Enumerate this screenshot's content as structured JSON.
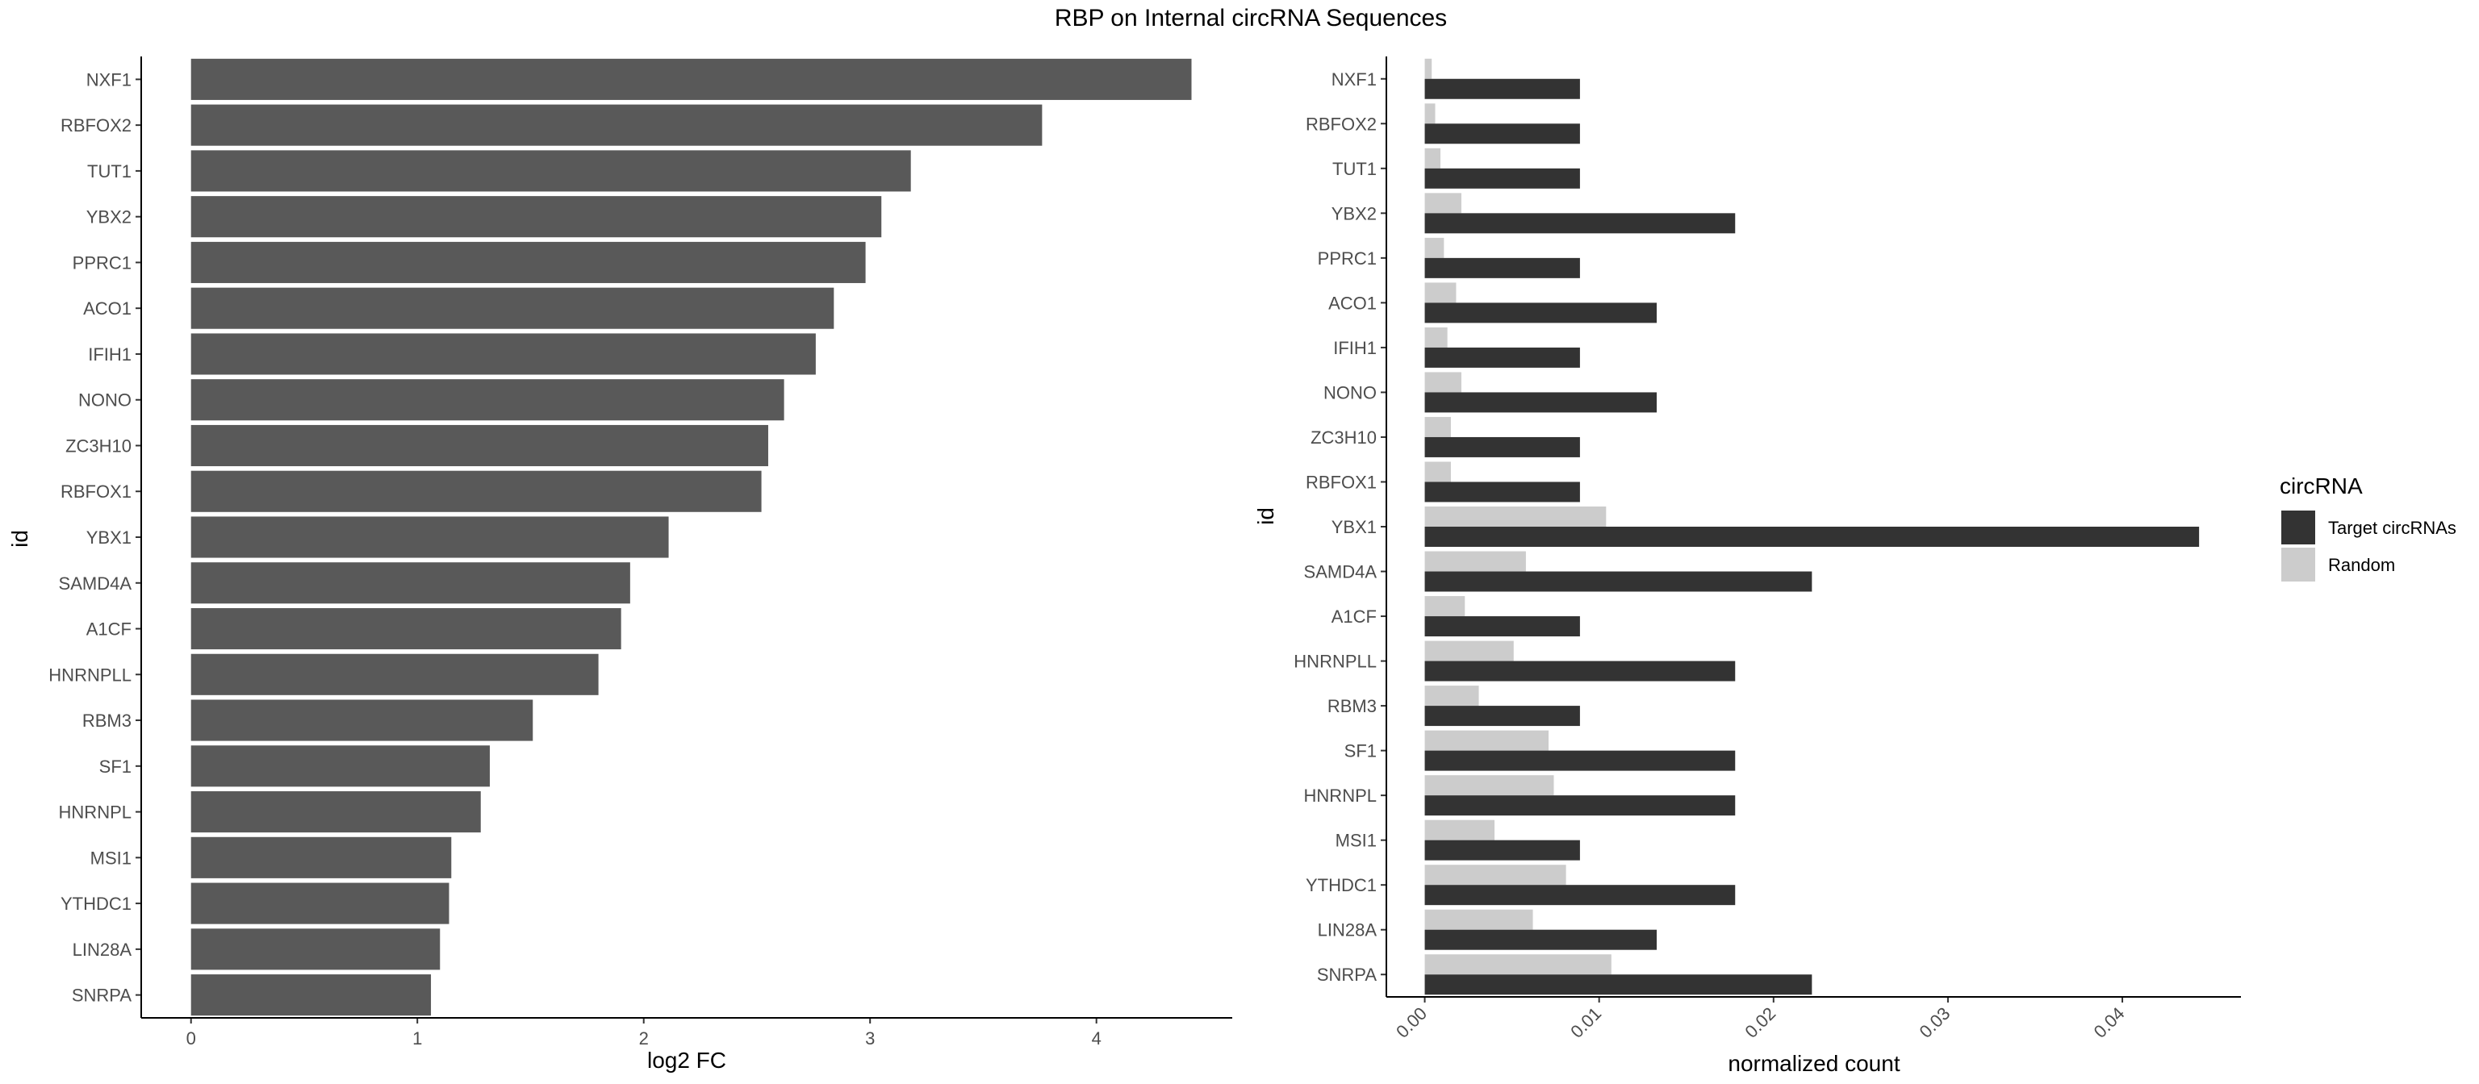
{
  "title": "RBP on Internal circRNA Sequences",
  "chart_data": [
    {
      "type": "bar",
      "orientation": "horizontal",
      "xlabel": "log2 FC",
      "ylabel": "id",
      "xlim": [
        -0.22,
        4.6
      ],
      "xticks": [
        "0",
        "1",
        "2",
        "3",
        "4"
      ],
      "categories": [
        "NXF1",
        "RBFOX2",
        "TUT1",
        "YBX2",
        "PPRC1",
        "ACO1",
        "IFIH1",
        "NONO",
        "ZC3H10",
        "RBFOX1",
        "YBX1",
        "SAMD4A",
        "A1CF",
        "HNRNPLL",
        "RBM3",
        "SF1",
        "HNRNPL",
        "MSI1",
        "YTHDC1",
        "LIN28A",
        "SNRPA"
      ],
      "values": [
        4.42,
        3.76,
        3.18,
        3.05,
        2.98,
        2.84,
        2.76,
        2.62,
        2.55,
        2.52,
        2.11,
        1.94,
        1.9,
        1.8,
        1.51,
        1.32,
        1.28,
        1.15,
        1.14,
        1.1,
        1.06
      ],
      "bar_color": "#595959",
      "grid": false
    },
    {
      "type": "bar",
      "orientation": "horizontal",
      "grouped": true,
      "xlabel": "normalized count",
      "ylabel": "id",
      "xlim": [
        -0.0022,
        0.0468
      ],
      "xticks": [
        "0.00",
        "0.01",
        "0.02",
        "0.03",
        "0.04"
      ],
      "categories": [
        "NXF1",
        "RBFOX2",
        "TUT1",
        "YBX2",
        "PPRC1",
        "ACO1",
        "IFIH1",
        "NONO",
        "ZC3H10",
        "RBFOX1",
        "YBX1",
        "SAMD4A",
        "A1CF",
        "HNRNPLL",
        "RBM3",
        "SF1",
        "HNRNPL",
        "MSI1",
        "YTHDC1",
        "LIN28A",
        "SNRPA"
      ],
      "series": [
        {
          "name": "Target circRNAs",
          "color": "#333333",
          "values": [
            0.0089,
            0.0089,
            0.0089,
            0.0178,
            0.0089,
            0.0133,
            0.0089,
            0.0133,
            0.0089,
            0.0089,
            0.0444,
            0.0222,
            0.0089,
            0.0178,
            0.0089,
            0.0178,
            0.0178,
            0.0089,
            0.0178,
            0.0133,
            0.0222
          ]
        },
        {
          "name": "Random",
          "color": "#cccccc",
          "values": [
            0.0004,
            0.0006,
            0.0009,
            0.0021,
            0.0011,
            0.0018,
            0.0013,
            0.0021,
            0.0015,
            0.0015,
            0.0104,
            0.0058,
            0.0023,
            0.0051,
            0.0031,
            0.0071,
            0.0074,
            0.004,
            0.0081,
            0.0062,
            0.0107
          ]
        }
      ],
      "legend": {
        "title": "circRNA",
        "position": "right"
      },
      "grid": false
    }
  ]
}
